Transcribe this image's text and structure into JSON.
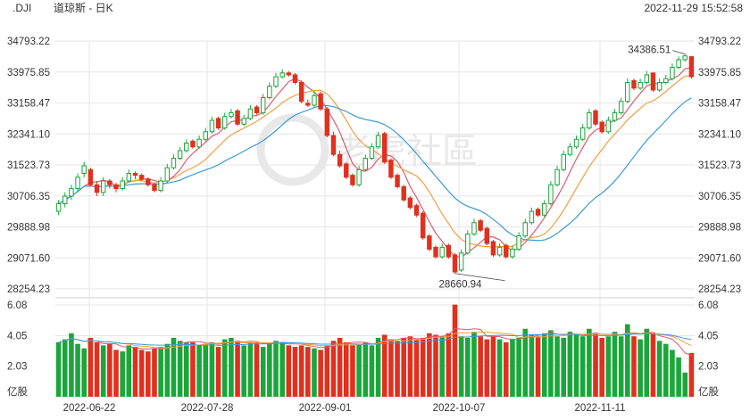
{
  "header": {
    "symbol": ".DJI",
    "title": "道琼斯 - 日K",
    "timestamp": "2022-11-29 15:52:58"
  },
  "watermark": {
    "text": "老虎社區"
  },
  "colors": {
    "up": "#1aa63a",
    "down": "#e0301e",
    "ma_short": "#e05a6e",
    "ma_mid": "#f0a040",
    "ma_long": "#3c9ad6",
    "grid": "#e6e6e6"
  },
  "chart_data": [
    {
      "type": "candlestick",
      "title": "道琼斯 - 日K",
      "y_tick_labels": [
        "34793.22",
        "33975.85",
        "33158.47",
        "32341.10",
        "31523.73",
        "30706.35",
        "29888.98",
        "29071.60",
        "28254.23"
      ],
      "ylim": [
        28254.23,
        34793.22
      ],
      "x_tick_labels": [
        "2022-06-22",
        "2022-07-28",
        "2022-09-01",
        "2022-10-07",
        "2022-11-11"
      ],
      "annotations": {
        "high": "34386.51",
        "low": "28660.94"
      },
      "series_colors_note": "red = down day, green = up day",
      "close": [
        30500,
        30700,
        30900,
        31200,
        31500,
        31000,
        30800,
        31100,
        31000,
        30900,
        31100,
        31300,
        31250,
        31150,
        31000,
        30850,
        31100,
        31450,
        31700,
        31900,
        32100,
        32000,
        32200,
        32400,
        32700,
        32500,
        32800,
        32900,
        32600,
        32750,
        33000,
        32900,
        33300,
        33600,
        33850,
        33950,
        33900,
        33700,
        33200,
        33100,
        33350,
        33000,
        32300,
        31800,
        31500,
        31200,
        31000,
        31400,
        31700,
        32000,
        32300,
        31600,
        31200,
        30950,
        30600,
        30400,
        30200,
        29600,
        29300,
        29100,
        29350,
        29100,
        28700,
        29200,
        29700,
        30000,
        29800,
        29450,
        29150,
        29350,
        29100,
        29300,
        29650,
        30000,
        30300,
        30200,
        30500,
        31000,
        31400,
        31800,
        32000,
        32200,
        32500,
        32900,
        32600,
        32400,
        32700,
        32900,
        33200,
        33700,
        33550,
        33700,
        33900,
        33500,
        33700,
        33800,
        34100,
        34300,
        34400,
        33850
      ],
      "open": [
        30300,
        30500,
        30700,
        30900,
        31300,
        31400,
        31000,
        30800,
        31100,
        31000,
        30900,
        31100,
        31300,
        31250,
        31150,
        31000,
        30850,
        31100,
        31450,
        31700,
        31900,
        32150,
        32000,
        32200,
        32400,
        32750,
        32500,
        32800,
        32950,
        32600,
        32750,
        33050,
        32900,
        33300,
        33600,
        33850,
        33950,
        33900,
        33700,
        33150,
        33100,
        33400,
        33000,
        32300,
        31800,
        31550,
        31250,
        31000,
        31400,
        31700,
        32000,
        32350,
        31650,
        31250,
        30950,
        30650,
        30450,
        30250,
        29650,
        29350,
        29100,
        29400,
        29150,
        28750,
        29200,
        29700,
        30050,
        29850,
        29500,
        29150,
        29400,
        29100,
        29300,
        29650,
        30000,
        30350,
        30200,
        30500,
        31000,
        31400,
        31800,
        32000,
        32200,
        32500,
        32950,
        32650,
        32400,
        32700,
        32900,
        33200,
        33750,
        33550,
        33700,
        33950,
        33500,
        33700,
        33800,
        34100,
        34300,
        34380
      ],
      "high": [
        30600,
        30800,
        31000,
        31300,
        31600,
        31450,
        31100,
        31200,
        31150,
        31050,
        31200,
        31400,
        31350,
        31300,
        31200,
        31050,
        31200,
        31550,
        31800,
        32000,
        32200,
        32200,
        32300,
        32500,
        32800,
        32800,
        32900,
        33000,
        33000,
        32850,
        33100,
        33100,
        33400,
        33700,
        33950,
        34050,
        34000,
        33950,
        33750,
        33250,
        33450,
        33450,
        33050,
        32400,
        31900,
        31600,
        31300,
        31500,
        31800,
        32100,
        32400,
        32400,
        31700,
        31300,
        31000,
        30700,
        30500,
        30300,
        29700,
        29400,
        29450,
        29450,
        29200,
        29300,
        29800,
        30100,
        30100,
        29900,
        29550,
        29450,
        29450,
        29400,
        29750,
        30100,
        30400,
        30400,
        30600,
        31100,
        31500,
        31900,
        32100,
        32300,
        32600,
        33000,
        33000,
        32700,
        32800,
        33000,
        33300,
        33800,
        33800,
        33800,
        34000,
        33950,
        33800,
        33900,
        34200,
        34386.51,
        34450,
        34400
      ],
      "low": [
        30200,
        30400,
        30600,
        30800,
        31200,
        30950,
        30700,
        30700,
        30900,
        30800,
        30850,
        31050,
        31150,
        31100,
        30950,
        30800,
        30800,
        31050,
        31400,
        31650,
        31850,
        31950,
        31950,
        32150,
        32350,
        32450,
        32450,
        32750,
        32550,
        32550,
        32700,
        32850,
        32850,
        33250,
        33550,
        33800,
        33850,
        33650,
        33150,
        33050,
        33050,
        32950,
        32250,
        31750,
        31450,
        31150,
        30950,
        30950,
        31350,
        31650,
        31950,
        31550,
        31150,
        30900,
        30550,
        30350,
        30150,
        29550,
        29250,
        29050,
        29050,
        29050,
        28660.94,
        28700,
        29150,
        29650,
        29750,
        29400,
        29100,
        29100,
        29050,
        29050,
        29250,
        29600,
        29950,
        30150,
        30150,
        30450,
        30950,
        31350,
        31750,
        31950,
        32150,
        32450,
        32550,
        32350,
        32350,
        32650,
        32850,
        33150,
        33500,
        33500,
        33650,
        33450,
        33450,
        33650,
        33750,
        34050,
        34250,
        33800
      ]
    },
    {
      "type": "bar",
      "title": "",
      "ylabel": "亿股",
      "y_tick_labels": [
        "6.08",
        "4.05",
        "2.03"
      ],
      "ylim": [
        0,
        6.08
      ],
      "color_rule": "bar color matches candle direction",
      "values": [
        3.6,
        3.8,
        4.2,
        3.5,
        3.2,
        3.9,
        3.6,
        3.4,
        3.5,
        3.1,
        3.0,
        3.4,
        3.3,
        3.1,
        3.0,
        3.2,
        3.3,
        3.5,
        3.9,
        3.7,
        3.6,
        3.6,
        3.4,
        3.5,
        3.6,
        3.3,
        3.8,
        3.9,
        3.7,
        3.4,
        3.6,
        3.6,
        3.3,
        3.5,
        3.7,
        3.6,
        3.4,
        3.3,
        3.4,
        3.3,
        3.2,
        3.1,
        3.4,
        3.7,
        3.9,
        3.6,
        3.4,
        3.5,
        3.6,
        3.4,
        3.9,
        4.1,
        3.8,
        3.7,
        3.9,
        4.0,
        3.8,
        3.9,
        4.2,
        4.1,
        4.0,
        4.2,
        6.1,
        4.0,
        3.9,
        4.3,
        4.0,
        3.8,
        4.0,
        3.8,
        3.6,
        3.8,
        3.9,
        4.5,
        4.1,
        4.0,
        4.2,
        4.4,
        4.0,
        3.9,
        4.3,
        4.1,
        4.0,
        4.5,
        4.2,
        3.9,
        4.0,
        4.3,
        4.0,
        4.8,
        4.0,
        3.8,
        4.5,
        4.2,
        3.7,
        3.5,
        3.1,
        2.6,
        1.6,
        2.9
      ]
    }
  ]
}
